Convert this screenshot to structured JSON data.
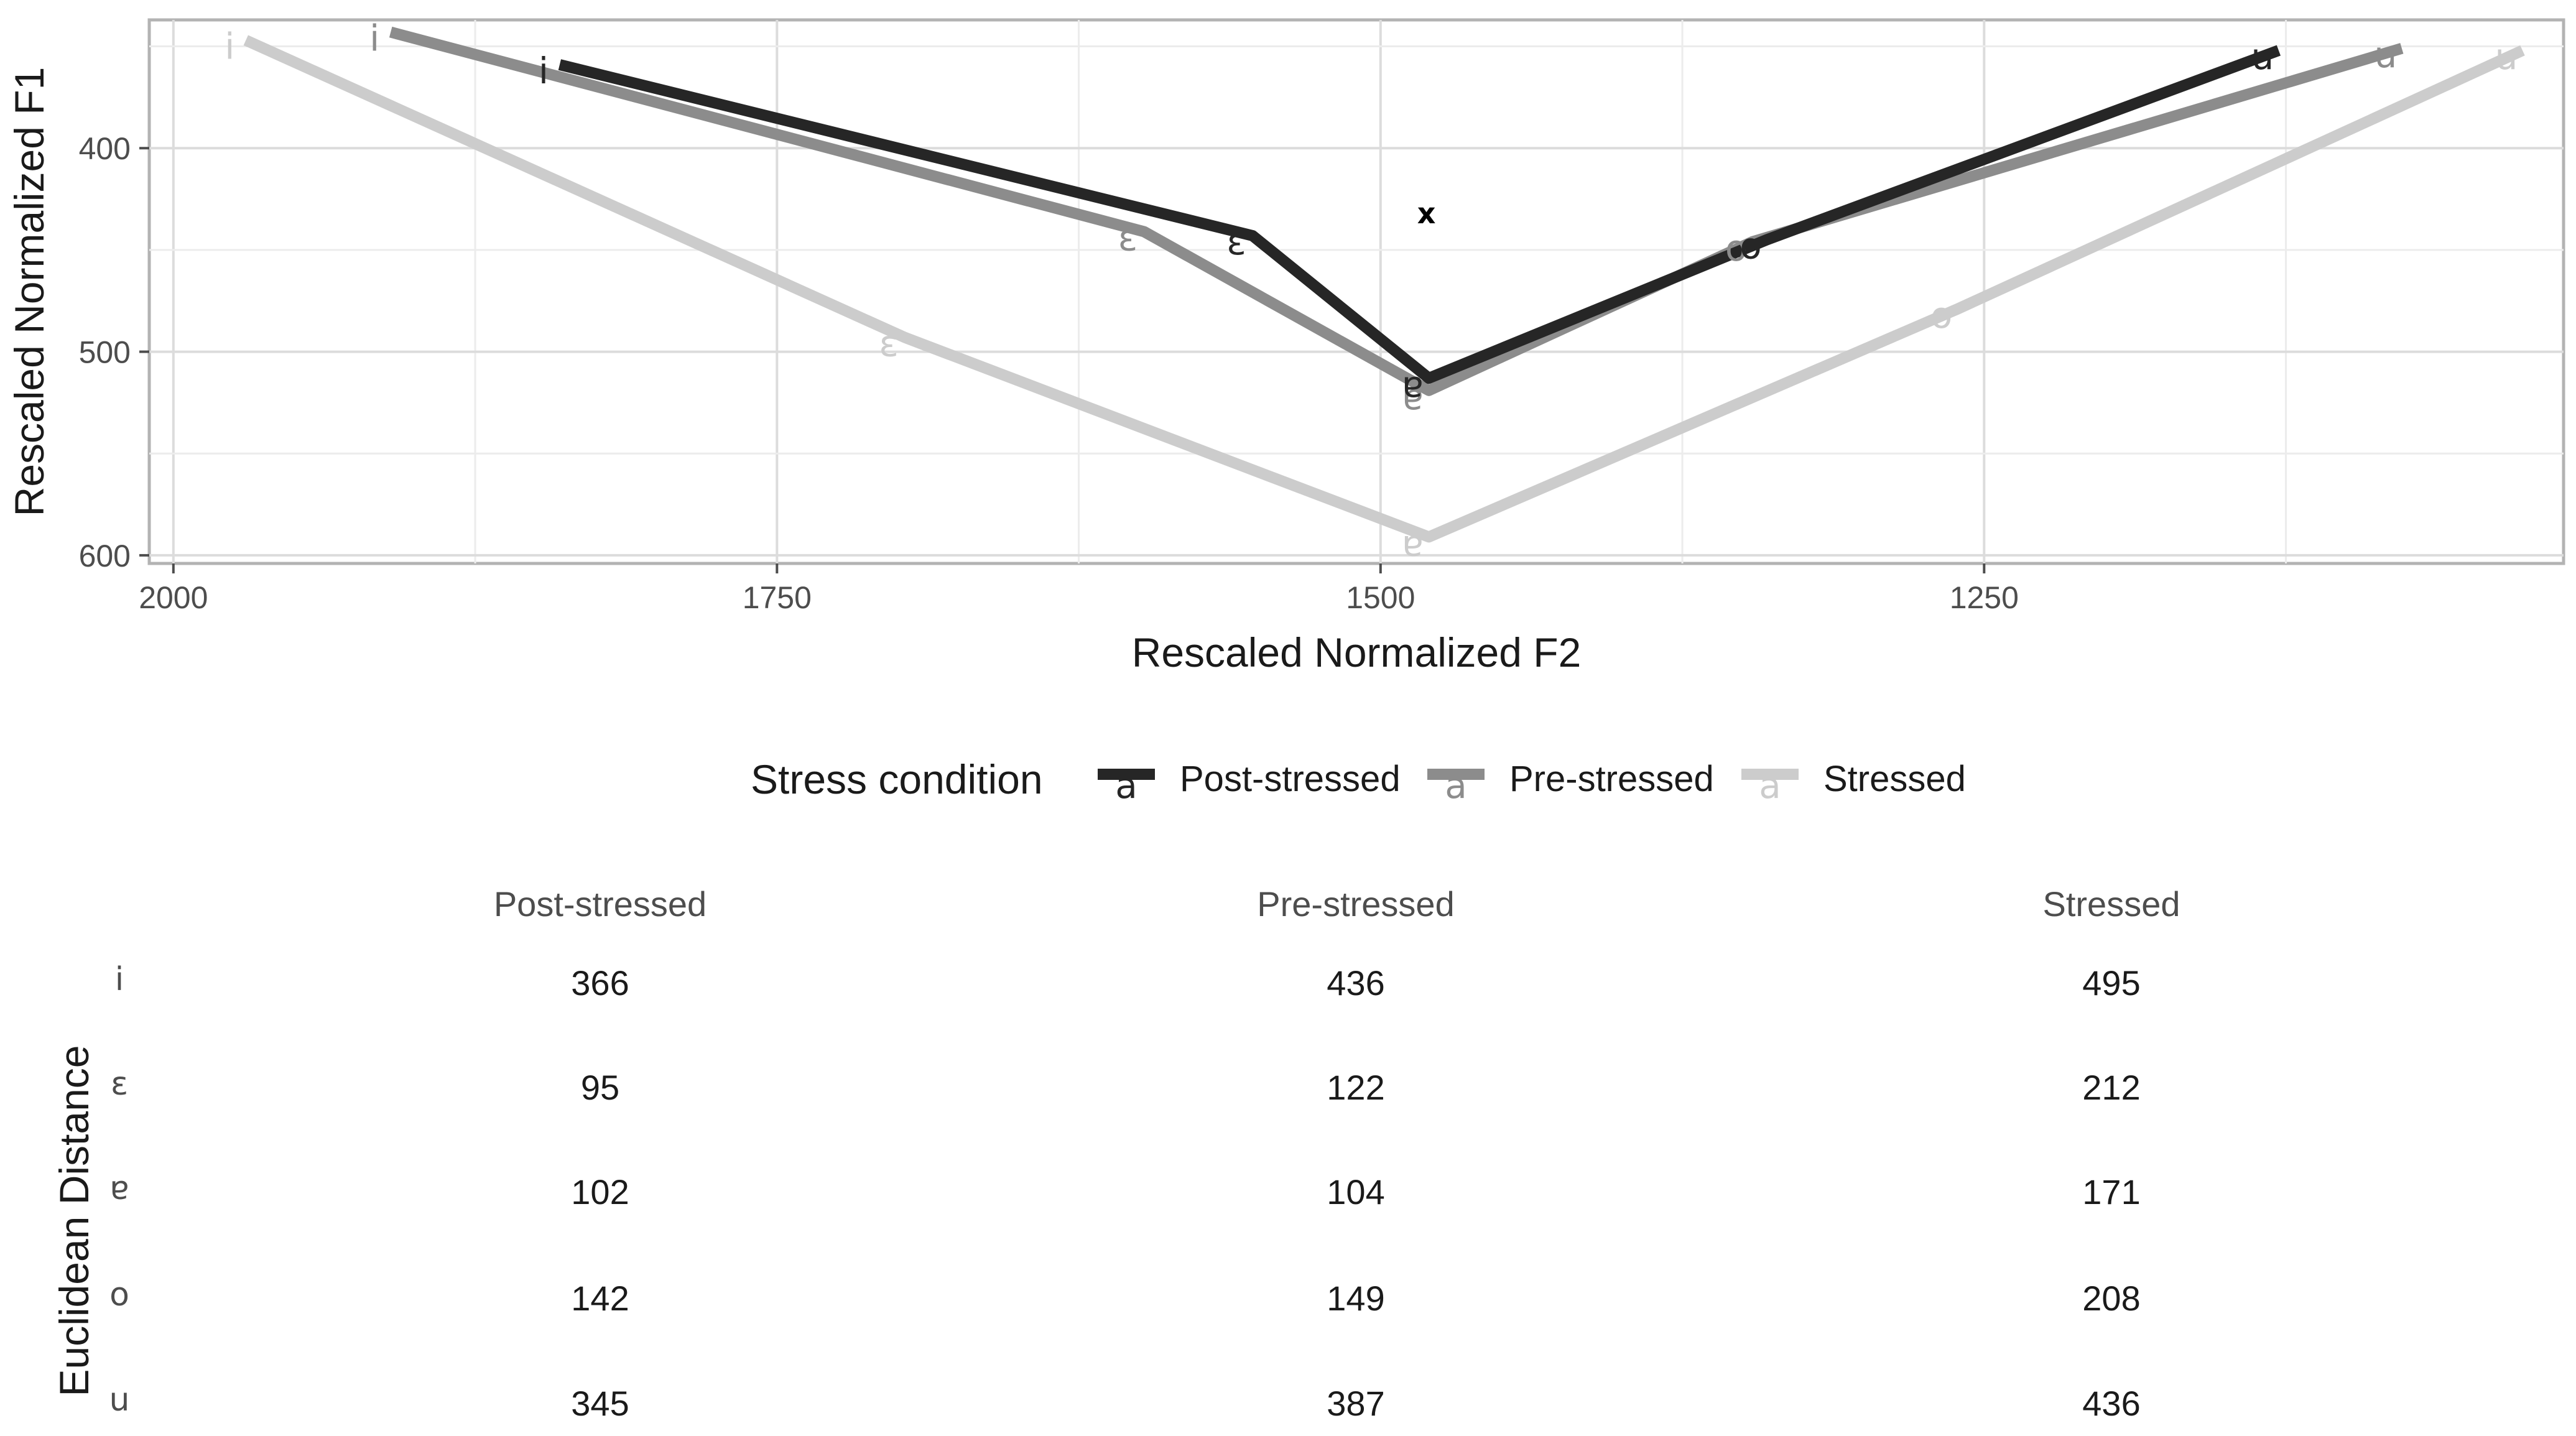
{
  "chart_data": [
    {
      "type": "line",
      "xlabel": "Rescaled Normalized F2",
      "ylabel": "Rescaled Normalized F1",
      "x_reversed": true,
      "y_reversed": true,
      "xlim": [
        2010,
        1010
      ],
      "ylim": [
        337,
        604
      ],
      "x_ticks": [
        2000,
        1750,
        1500,
        1250
      ],
      "y_ticks": [
        400,
        500,
        600
      ],
      "grid": true,
      "point_labels": [
        "i",
        "ɛ",
        "ɐ",
        "o",
        "u"
      ],
      "series": [
        {
          "name": "Post-stressed",
          "color": "#262626",
          "points": [
            {
              "label": "i",
              "x": 1840,
              "y": 359
            },
            {
              "label": "ɛ",
              "x": 1553,
              "y": 443
            },
            {
              "label": "ɐ",
              "x": 1480,
              "y": 513
            },
            {
              "label": "o",
              "x": 1340,
              "y": 445
            },
            {
              "label": "u",
              "x": 1128,
              "y": 352
            }
          ]
        },
        {
          "name": "Pre-stressed",
          "color": "#8c8c8c",
          "points": [
            {
              "label": "i",
              "x": 1910,
              "y": 343
            },
            {
              "label": "ɛ",
              "x": 1598,
              "y": 441
            },
            {
              "label": "ɐ",
              "x": 1480,
              "y": 519
            },
            {
              "label": "o",
              "x": 1346,
              "y": 446
            },
            {
              "label": "u",
              "x": 1077,
              "y": 351
            }
          ]
        },
        {
          "name": "Stressed",
          "color": "#cccccc",
          "points": [
            {
              "label": "i",
              "x": 1970,
              "y": 347
            },
            {
              "label": "ɛ",
              "x": 1697,
              "y": 493
            },
            {
              "label": "ɐ",
              "x": 1480,
              "y": 591
            },
            {
              "label": "o",
              "x": 1261,
              "y": 479
            },
            {
              "label": "u",
              "x": 1027,
              "y": 352
            }
          ]
        }
      ],
      "centroid": {
        "label": "x",
        "x": 1481,
        "y": 432
      }
    },
    {
      "type": "table",
      "row_axis_label": "Euclidean Distance",
      "columns": [
        "Post-stressed",
        "Pre-stressed",
        "Stressed"
      ],
      "rows": [
        {
          "label": "i",
          "values": [
            "366",
            "436",
            "495"
          ]
        },
        {
          "label": "ɛ",
          "values": [
            "95",
            "122",
            "212"
          ]
        },
        {
          "label": "ɐ",
          "values": [
            "102",
            "104",
            "171"
          ]
        },
        {
          "label": "o",
          "values": [
            "142",
            "149",
            "208"
          ]
        },
        {
          "label": "u",
          "values": [
            "345",
            "387",
            "436"
          ]
        }
      ]
    }
  ],
  "legend": {
    "title": "Stress condition",
    "key_glyph": "a",
    "placement": "bottom"
  }
}
